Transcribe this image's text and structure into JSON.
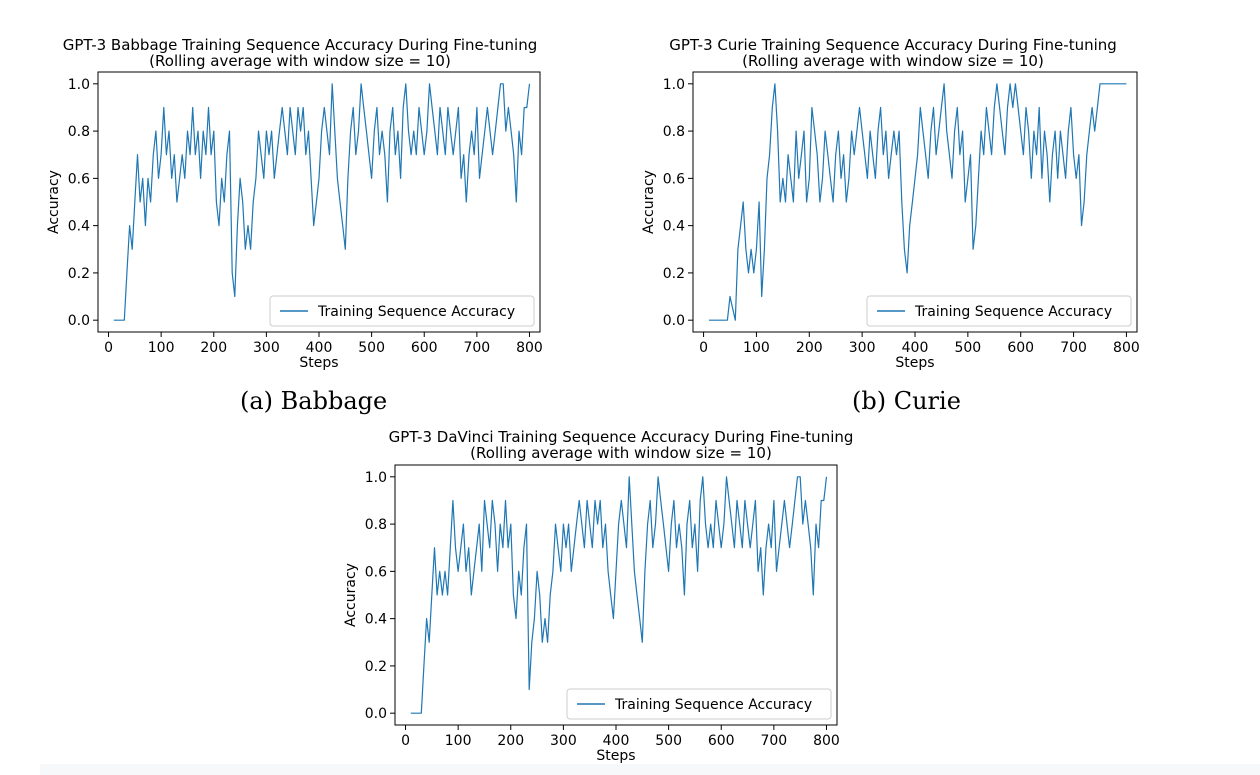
{
  "captions": {
    "a": "(a) Babbage",
    "b": "(b) Curie"
  },
  "chart_data": [
    {
      "type": "line",
      "title": "GPT-3 Babbage Training Sequence Accuracy During Fine-tuning",
      "subtitle": "(Rolling average with window size = 10)",
      "xlabel": "Steps",
      "ylabel": "Accuracy",
      "xlim": [
        -20,
        820
      ],
      "ylim": [
        -0.05,
        1.05
      ],
      "xticks": [
        0,
        100,
        200,
        300,
        400,
        500,
        600,
        700,
        800
      ],
      "yticks": [
        0.0,
        0.2,
        0.4,
        0.6,
        0.8,
        1.0
      ],
      "ytick_labels": [
        "0.0",
        "0.2",
        "0.4",
        "0.6",
        "0.8",
        "1.0"
      ],
      "grid": false,
      "legend": {
        "entries": [
          "Training Sequence Accuracy"
        ],
        "location": "lower right"
      },
      "series": [
        {
          "name": "Training Sequence Accuracy",
          "color": "#1f77b4",
          "x": [
            10,
            30,
            35,
            40,
            45,
            50,
            55,
            60,
            65,
            70,
            75,
            80,
            85,
            90,
            95,
            100,
            105,
            110,
            115,
            120,
            125,
            130,
            135,
            140,
            145,
            150,
            155,
            160,
            165,
            170,
            175,
            180,
            185,
            190,
            195,
            200,
            205,
            210,
            215,
            220,
            225,
            230,
            235,
            240,
            245,
            250,
            255,
            260,
            265,
            270,
            275,
            280,
            285,
            290,
            295,
            300,
            305,
            310,
            315,
            320,
            325,
            330,
            335,
            340,
            345,
            350,
            355,
            360,
            365,
            370,
            375,
            380,
            385,
            390,
            395,
            400,
            405,
            410,
            415,
            420,
            425,
            430,
            435,
            440,
            445,
            450,
            455,
            460,
            465,
            470,
            475,
            480,
            485,
            490,
            495,
            500,
            505,
            510,
            515,
            520,
            525,
            530,
            535,
            540,
            545,
            550,
            555,
            560,
            565,
            570,
            575,
            580,
            585,
            590,
            595,
            600,
            605,
            610,
            615,
            620,
            625,
            630,
            635,
            640,
            645,
            650,
            655,
            660,
            665,
            670,
            675,
            680,
            685,
            690,
            695,
            700,
            705,
            710,
            715,
            720,
            725,
            730,
            735,
            740,
            745,
            750,
            755,
            760,
            765,
            770,
            775,
            780,
            785,
            790,
            795,
            800
          ],
          "y": [
            0.0,
            0.0,
            0.2,
            0.4,
            0.3,
            0.5,
            0.7,
            0.5,
            0.6,
            0.4,
            0.6,
            0.5,
            0.7,
            0.8,
            0.6,
            0.7,
            0.9,
            0.7,
            0.8,
            0.6,
            0.7,
            0.5,
            0.6,
            0.7,
            0.6,
            0.8,
            0.7,
            0.9,
            0.7,
            0.8,
            0.6,
            0.8,
            0.7,
            0.9,
            0.7,
            0.8,
            0.5,
            0.4,
            0.6,
            0.5,
            0.7,
            0.8,
            0.2,
            0.1,
            0.4,
            0.6,
            0.5,
            0.3,
            0.4,
            0.3,
            0.5,
            0.6,
            0.8,
            0.7,
            0.6,
            0.8,
            0.7,
            0.8,
            0.6,
            0.7,
            0.8,
            0.9,
            0.8,
            0.7,
            0.9,
            0.8,
            0.7,
            0.9,
            0.8,
            0.9,
            0.7,
            0.8,
            0.6,
            0.4,
            0.5,
            0.6,
            0.8,
            0.9,
            0.8,
            0.7,
            1.0,
            0.8,
            0.6,
            0.5,
            0.4,
            0.3,
            0.6,
            0.8,
            0.9,
            0.7,
            0.8,
            1.0,
            0.9,
            0.8,
            0.7,
            0.6,
            0.8,
            0.9,
            0.7,
            0.8,
            0.7,
            0.5,
            0.8,
            0.9,
            0.7,
            0.8,
            0.6,
            0.9,
            1.0,
            0.8,
            0.7,
            0.8,
            0.7,
            0.9,
            0.8,
            0.7,
            0.8,
            1.0,
            0.9,
            0.8,
            0.7,
            0.9,
            0.8,
            0.7,
            0.9,
            0.8,
            0.7,
            0.8,
            0.9,
            0.6,
            0.7,
            0.5,
            0.7,
            0.8,
            0.7,
            0.9,
            0.6,
            0.7,
            0.8,
            0.9,
            0.8,
            0.7,
            0.8,
            0.9,
            1.0,
            1.0,
            0.8,
            0.9,
            0.8,
            0.7,
            0.5,
            0.8,
            0.7,
            0.9,
            0.9,
            1.0
          ]
        }
      ]
    },
    {
      "type": "line",
      "title": "GPT-3 Curie Training Sequence Accuracy During Fine-tuning",
      "subtitle": "(Rolling average with window size = 10)",
      "xlabel": "Steps",
      "ylabel": "Accuracy",
      "xlim": [
        -20,
        820
      ],
      "ylim": [
        -0.05,
        1.05
      ],
      "xticks": [
        0,
        100,
        200,
        300,
        400,
        500,
        600,
        700,
        800
      ],
      "yticks": [
        0.0,
        0.2,
        0.4,
        0.6,
        0.8,
        1.0
      ],
      "ytick_labels": [
        "0.0",
        "0.2",
        "0.4",
        "0.6",
        "0.8",
        "1.0"
      ],
      "grid": false,
      "legend": {
        "entries": [
          "Training Sequence Accuracy"
        ],
        "location": "lower right"
      },
      "series": [
        {
          "name": "Training Sequence Accuracy",
          "color": "#1f77b4",
          "x": [
            10,
            45,
            50,
            60,
            65,
            70,
            75,
            80,
            85,
            90,
            95,
            100,
            105,
            110,
            115,
            120,
            125,
            130,
            135,
            140,
            145,
            150,
            155,
            160,
            165,
            170,
            175,
            180,
            185,
            190,
            195,
            200,
            205,
            210,
            215,
            220,
            225,
            230,
            235,
            240,
            245,
            250,
            255,
            260,
            265,
            270,
            275,
            280,
            285,
            290,
            295,
            300,
            305,
            310,
            315,
            320,
            325,
            330,
            335,
            340,
            345,
            350,
            355,
            360,
            365,
            370,
            375,
            380,
            385,
            390,
            395,
            400,
            405,
            410,
            415,
            420,
            425,
            430,
            435,
            440,
            445,
            450,
            455,
            460,
            465,
            470,
            475,
            480,
            485,
            490,
            495,
            500,
            505,
            510,
            515,
            520,
            525,
            530,
            535,
            540,
            545,
            550,
            555,
            560,
            565,
            570,
            575,
            580,
            585,
            590,
            595,
            600,
            605,
            610,
            615,
            620,
            625,
            630,
            635,
            640,
            645,
            650,
            655,
            660,
            665,
            670,
            675,
            680,
            685,
            690,
            695,
            700,
            705,
            710,
            715,
            720,
            725,
            730,
            735,
            740,
            745,
            750,
            755,
            760,
            765,
            770,
            775,
            780,
            785,
            790,
            795,
            800
          ],
          "y": [
            0.0,
            0.0,
            0.1,
            0.0,
            0.3,
            0.4,
            0.5,
            0.3,
            0.2,
            0.3,
            0.2,
            0.3,
            0.5,
            0.1,
            0.3,
            0.6,
            0.7,
            0.9,
            1.0,
            0.8,
            0.5,
            0.6,
            0.5,
            0.7,
            0.6,
            0.5,
            0.8,
            0.6,
            0.7,
            0.8,
            0.5,
            0.6,
            0.9,
            0.8,
            0.7,
            0.5,
            0.6,
            0.8,
            0.7,
            0.6,
            0.5,
            0.7,
            0.8,
            0.6,
            0.7,
            0.5,
            0.6,
            0.8,
            0.7,
            0.8,
            0.9,
            0.8,
            0.7,
            0.6,
            0.8,
            0.7,
            0.6,
            0.8,
            0.9,
            0.7,
            0.8,
            0.6,
            0.7,
            0.8,
            0.7,
            0.8,
            0.5,
            0.3,
            0.2,
            0.4,
            0.5,
            0.6,
            0.7,
            0.9,
            0.8,
            0.7,
            0.6,
            0.8,
            0.9,
            0.7,
            0.8,
            0.9,
            1.0,
            0.8,
            0.7,
            0.6,
            0.8,
            0.9,
            0.7,
            0.8,
            0.5,
            0.6,
            0.7,
            0.3,
            0.4,
            0.6,
            0.8,
            0.7,
            0.9,
            0.8,
            0.7,
            0.9,
            1.0,
            0.9,
            0.8,
            0.7,
            0.9,
            1.0,
            0.9,
            1.0,
            0.9,
            0.8,
            0.7,
            0.9,
            0.8,
            0.6,
            0.8,
            0.7,
            0.9,
            0.6,
            0.8,
            0.7,
            0.5,
            0.7,
            0.8,
            0.6,
            0.8,
            0.7,
            0.6,
            0.8,
            0.9,
            0.7,
            0.6,
            0.7,
            0.4,
            0.5,
            0.7,
            0.8,
            0.9,
            0.8,
            0.9,
            1.0,
            1.0,
            1.0,
            1.0,
            1.0,
            1.0,
            1.0,
            1.0,
            1.0,
            1.0,
            1.0
          ]
        }
      ]
    },
    {
      "type": "line",
      "title": "GPT-3 DaVinci Training Sequence Accuracy During Fine-tuning",
      "subtitle": "(Rolling average with window size = 10)",
      "xlabel": "Steps",
      "ylabel": "Accuracy",
      "xlim": [
        -20,
        820
      ],
      "ylim": [
        -0.05,
        1.05
      ],
      "xticks": [
        0,
        100,
        200,
        300,
        400,
        500,
        600,
        700,
        800
      ],
      "yticks": [
        0.0,
        0.2,
        0.4,
        0.6,
        0.8,
        1.0
      ],
      "ytick_labels": [
        "0.0",
        "0.2",
        "0.4",
        "0.6",
        "0.8",
        "1.0"
      ],
      "grid": false,
      "legend": {
        "entries": [
          "Training Sequence Accuracy"
        ],
        "location": "lower right"
      },
      "series": [
        {
          "name": "Training Sequence Accuracy",
          "color": "#1f77b4",
          "x": [
            10,
            30,
            35,
            40,
            45,
            50,
            55,
            60,
            65,
            70,
            75,
            80,
            85,
            90,
            95,
            100,
            105,
            110,
            115,
            120,
            125,
            130,
            135,
            140,
            145,
            150,
            155,
            160,
            165,
            170,
            175,
            180,
            185,
            190,
            195,
            200,
            205,
            210,
            215,
            220,
            225,
            230,
            235,
            240,
            245,
            250,
            255,
            260,
            265,
            270,
            275,
            280,
            285,
            290,
            295,
            300,
            305,
            310,
            315,
            320,
            325,
            330,
            335,
            340,
            345,
            350,
            355,
            360,
            365,
            370,
            375,
            380,
            385,
            390,
            395,
            400,
            405,
            410,
            415,
            420,
            425,
            430,
            435,
            440,
            445,
            450,
            455,
            460,
            465,
            470,
            475,
            480,
            485,
            490,
            495,
            500,
            505,
            510,
            515,
            520,
            525,
            530,
            535,
            540,
            545,
            550,
            555,
            560,
            565,
            570,
            575,
            580,
            585,
            590,
            595,
            600,
            605,
            610,
            615,
            620,
            625,
            630,
            635,
            640,
            645,
            650,
            655,
            660,
            665,
            670,
            675,
            680,
            685,
            690,
            695,
            700,
            705,
            710,
            715,
            720,
            725,
            730,
            735,
            740,
            745,
            750,
            755,
            760,
            765,
            770,
            775,
            780,
            785,
            790,
            795,
            800
          ],
          "y": [
            0.0,
            0.0,
            0.2,
            0.4,
            0.3,
            0.5,
            0.7,
            0.5,
            0.6,
            0.5,
            0.6,
            0.5,
            0.7,
            0.9,
            0.7,
            0.6,
            0.7,
            0.8,
            0.6,
            0.7,
            0.5,
            0.6,
            0.7,
            0.8,
            0.6,
            0.9,
            0.8,
            0.7,
            0.9,
            0.8,
            0.6,
            0.8,
            0.7,
            0.9,
            0.7,
            0.8,
            0.5,
            0.4,
            0.6,
            0.5,
            0.7,
            0.8,
            0.1,
            0.3,
            0.4,
            0.6,
            0.5,
            0.3,
            0.4,
            0.3,
            0.5,
            0.6,
            0.8,
            0.7,
            0.6,
            0.8,
            0.7,
            0.8,
            0.6,
            0.7,
            0.8,
            0.9,
            0.8,
            0.7,
            0.9,
            0.8,
            0.7,
            0.9,
            0.8,
            0.9,
            0.7,
            0.8,
            0.6,
            0.5,
            0.4,
            0.6,
            0.8,
            0.9,
            0.8,
            0.7,
            1.0,
            0.8,
            0.6,
            0.5,
            0.4,
            0.3,
            0.6,
            0.8,
            0.9,
            0.7,
            0.8,
            1.0,
            0.9,
            0.8,
            0.7,
            0.6,
            0.8,
            0.9,
            0.7,
            0.8,
            0.7,
            0.5,
            0.8,
            0.9,
            0.7,
            0.8,
            0.6,
            0.9,
            1.0,
            0.8,
            0.7,
            0.8,
            0.7,
            0.9,
            0.8,
            0.7,
            0.8,
            1.0,
            0.9,
            0.8,
            0.7,
            0.9,
            0.8,
            0.7,
            0.9,
            0.8,
            0.7,
            0.8,
            0.9,
            0.6,
            0.7,
            0.5,
            0.7,
            0.8,
            0.7,
            0.9,
            0.6,
            0.7,
            0.8,
            0.9,
            0.8,
            0.7,
            0.8,
            0.9,
            1.0,
            1.0,
            0.8,
            0.9,
            0.8,
            0.7,
            0.5,
            0.8,
            0.7,
            0.9,
            0.9,
            1.0
          ]
        }
      ]
    }
  ]
}
